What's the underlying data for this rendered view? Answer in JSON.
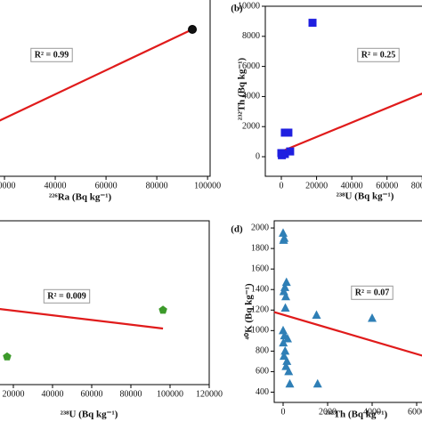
{
  "chart_data": [
    {
      "type": "scatter",
      "x_label": "²²⁶Ra (Bq kg⁻¹)",
      "annotation": "R² = 0.99",
      "xlim": [
        0,
        101000
      ],
      "xticks": [
        20000,
        40000,
        60000,
        80000,
        100000
      ],
      "ylim": [
        0,
        12000
      ],
      "series": [
        {
          "color": "#111111",
          "marker": "circle",
          "x": [
            0,
            94000
          ],
          "values": [
            1900,
            9520
          ]
        }
      ],
      "fit_line": {
        "color": "#e01b1b",
        "x": [
          0,
          94000
        ],
        "values": [
          2200,
          9520
        ]
      }
    },
    {
      "type": "scatter",
      "panel_label": "(b)",
      "x_label": "²³⁸U (Bq kg⁻¹)",
      "y_label": "²³²Th (Bq kg⁻¹)",
      "annotation": "R² = 0.25",
      "xlim": [
        -9100,
        93000
      ],
      "xticks": [
        0,
        20000,
        40000,
        60000,
        80000
      ],
      "ylim": [
        -1300,
        10000
      ],
      "yticks": [
        0,
        2000,
        4000,
        6000,
        8000,
        10000
      ],
      "series": [
        {
          "color": "#1f1fe0",
          "marker": "square",
          "x": [
            17700,
            2000,
            4000,
            0,
            2000,
            5000,
            300
          ],
          "values": [
            8900,
            1600,
            1600,
            240,
            180,
            350,
            100
          ]
        }
      ],
      "fit_line": {
        "color": "#e01b1b",
        "x": [
          0,
          80000
        ],
        "values": [
          350,
          4200
        ]
      }
    },
    {
      "type": "scatter",
      "x_label": "²³⁸U (Bq kg⁻¹)",
      "annotation": "R² = 0.009",
      "xlim": [
        0,
        120000
      ],
      "xticks": [
        20000,
        40000,
        60000,
        80000,
        100000,
        120000
      ],
      "ylim": [
        0,
        200
      ],
      "series": [
        {
          "color": "#3c9a2a",
          "marker": "pentagon",
          "x": [
            96400,
            16800
          ],
          "values": [
            91,
            34
          ]
        }
      ],
      "fit_line": {
        "color": "#e01b1b",
        "x": [
          0,
          96400
        ],
        "values": [
          96,
          68.5
        ]
      }
    },
    {
      "type": "scatter",
      "panel_label": "(d)",
      "x_label": "²³²Th (Bq kg⁻¹)",
      "y_label": "⁴⁰K (Bq kg⁻¹)",
      "annotation": "R² = 0.07",
      "xlim": [
        -400,
        6480
      ],
      "xticks": [
        0,
        2000,
        4000,
        6000
      ],
      "ylim": [
        300,
        2070
      ],
      "yticks": [
        400,
        600,
        800,
        1000,
        1200,
        1400,
        1600,
        1800,
        2000
      ],
      "series": [
        {
          "color": "#2f7fb6",
          "marker": "triangle",
          "x": [
            0,
            50,
            20,
            150,
            80,
            30,
            120,
            100,
            0,
            60,
            200,
            10,
            90,
            40,
            170,
            130,
            250,
            300,
            1500,
            1550,
            4000
          ],
          "values": [
            1950,
            1900,
            1880,
            1470,
            1420,
            1380,
            1330,
            1220,
            1000,
            950,
            920,
            880,
            800,
            750,
            700,
            650,
            600,
            480,
            1150,
            480,
            1120
          ]
        }
      ],
      "fit_line": {
        "color": "#e01b1b",
        "x": [
          -400,
          6500
        ],
        "values": [
          1180,
          740
        ]
      }
    }
  ]
}
